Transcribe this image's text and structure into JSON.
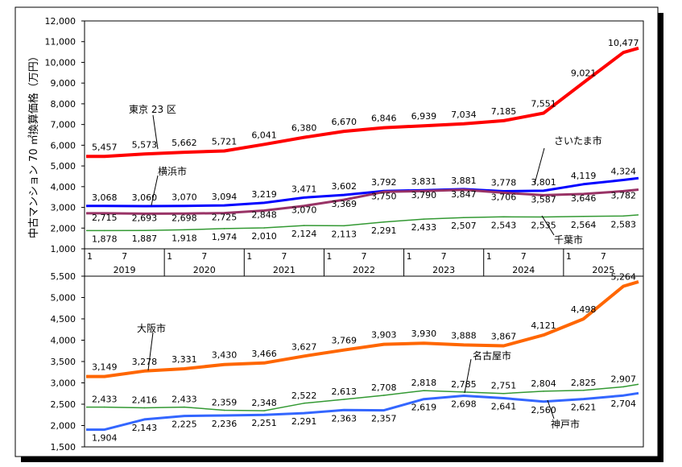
{
  "chart_data": [
    {
      "type": "line",
      "panel": "top",
      "ylabel": "中古マンション 70 ㎡換算価格（万円）",
      "ylim": [
        1000,
        12000
      ],
      "yticks": [
        "1,000",
        "2,000",
        "3,000",
        "4,000",
        "5,000",
        "6,000",
        "7,000",
        "8,000",
        "9,000",
        "10,000",
        "11,000",
        "12,000"
      ],
      "x_month_ticks": [
        "1",
        "7",
        "1",
        "7",
        "1",
        "7",
        "1",
        "7",
        "1",
        "7",
        "1",
        "7",
        "1",
        "7"
      ],
      "x_years": [
        "2019",
        "2020",
        "2021",
        "2022",
        "2023",
        "2024",
        "2025"
      ],
      "series": [
        {
          "name": "東京 23 区",
          "color": "#ff0000",
          "values": [
            5457,
            5573,
            5662,
            5721,
            6041,
            6380,
            6670,
            6846,
            6939,
            7034,
            7185,
            7551,
            9021,
            10477
          ],
          "labels": [
            "5,457",
            "5,573",
            "5,662",
            "5,721",
            "6,041",
            "6,380",
            "6,670",
            "6,846",
            "6,939",
            "7,034",
            "7,185",
            "7,551",
            "9,021",
            "10,477"
          ]
        },
        {
          "name": "さいたま市",
          "color": "#0000ff",
          "values": [
            3068,
            3060,
            3070,
            3094,
            3219,
            3471,
            3602,
            3792,
            3831,
            3881,
            3778,
            3801,
            4119,
            4324
          ],
          "labels": [
            "3,068",
            "3,060",
            "3,070",
            "3,094",
            "3,219",
            "3,471",
            "3,602",
            "3,792",
            "3,831",
            "3,881",
            "3,778",
            "3,801",
            "4,119",
            "4,324"
          ]
        },
        {
          "name": "横浜市",
          "color": "#993366",
          "values": [
            2715,
            2693,
            2698,
            2725,
            2848,
            3070,
            3369,
            3750,
            3790,
            3847,
            3706,
            3587,
            3646,
            3782
          ],
          "labels": [
            "2,715",
            "2,693",
            "2,698",
            "2,725",
            "2,848",
            "3,070",
            "3,369",
            "3,750",
            "3,790",
            "3,847",
            "3,706",
            "3,587",
            "3,646",
            "3,782"
          ]
        },
        {
          "name": "千葉市",
          "color": "#339933",
          "values": [
            1878,
            1887,
            1918,
            1974,
            2010,
            2124,
            2113,
            2291,
            2433,
            2507,
            2543,
            2535,
            2564,
            2583
          ],
          "labels": [
            "1,878",
            "1,887",
            "1,918",
            "1,974",
            "2,010",
            "2,124",
            "2,113",
            "2,291",
            "2,433",
            "2,507",
            "2,543",
            "2,535",
            "2,564",
            "2,583"
          ]
        }
      ]
    },
    {
      "type": "line",
      "panel": "bottom",
      "ylim": [
        1500,
        5500
      ],
      "yticks": [
        "1,500",
        "2,000",
        "2,500",
        "3,000",
        "3,500",
        "4,000",
        "4,500",
        "5,000",
        "5,500"
      ],
      "series": [
        {
          "name": "大阪市",
          "color": "#ff6600",
          "values": [
            3149,
            3278,
            3331,
            3430,
            3466,
            3627,
            3769,
            3903,
            3930,
            3888,
            3867,
            4121,
            4498,
            5264
          ],
          "labels": [
            "3,149",
            "3,278",
            "3,331",
            "3,430",
            "3,466",
            "3,627",
            "3,769",
            "3,903",
            "3,930",
            "3,888",
            "3,867",
            "4,121",
            "4,498",
            "5,264"
          ]
        },
        {
          "name": "名古屋市",
          "color": "#339933",
          "values": [
            2433,
            2416,
            2433,
            2359,
            2348,
            2522,
            2613,
            2708,
            2818,
            2785,
            2751,
            2804,
            2825,
            2907
          ],
          "labels": [
            "2,433",
            "2,416",
            "2,433",
            "2,359",
            "2,348",
            "2,522",
            "2,613",
            "2,708",
            "2,818",
            "2,785",
            "2,751",
            "2,804",
            "2,825",
            "2,907"
          ]
        },
        {
          "name": "神戸市",
          "color": "#3366ff",
          "values": [
            1904,
            2143,
            2225,
            2236,
            2251,
            2291,
            2363,
            2357,
            2619,
            2698,
            2641,
            2560,
            2621,
            2704
          ],
          "labels": [
            "1,904",
            "2,143",
            "2,225",
            "2,236",
            "2,251",
            "2,291",
            "2,363",
            "2,357",
            "2,619",
            "2,698",
            "2,641",
            "2,560",
            "2,621",
            "2,704"
          ]
        }
      ]
    }
  ]
}
